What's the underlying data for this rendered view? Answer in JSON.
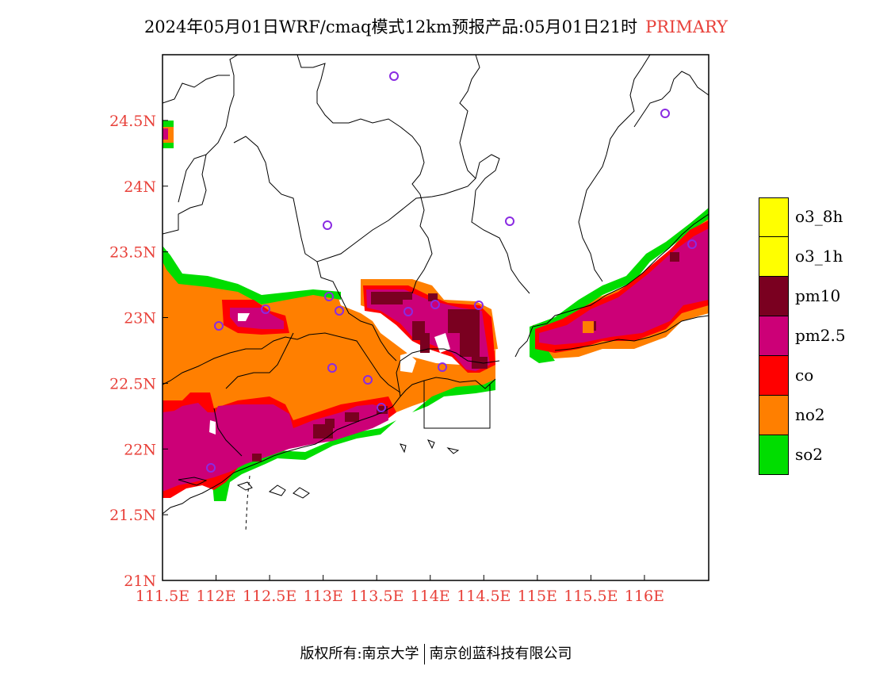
{
  "title": {
    "main": "2024年05月01日WRF/cmaq模式12km预报产品:05月01日21时",
    "tag": "PRIMARY"
  },
  "colors": {
    "axis_label": "#e8413a",
    "station_marker": "#8a2be2",
    "o3_8h": "#ffff00",
    "o3_1h": "#ffff00",
    "pm10": "#7a0020",
    "pm2.5": "#cc0077",
    "co": "#ff0000",
    "no2": "#ff7f00",
    "so2": "#00dd00"
  },
  "map": {
    "lon_range": [
      111.5,
      116.6
    ],
    "lat_range": [
      21.0,
      25.0
    ],
    "x_ticks": [
      "111.5E",
      "112E",
      "112.5E",
      "113E",
      "113.5E",
      "114E",
      "114.5E",
      "115E",
      "115.5E",
      "116E"
    ],
    "y_ticks": [
      "24.5N",
      "24N",
      "23.5N",
      "23N",
      "22.5N",
      "22N",
      "21.5N",
      "21N"
    ]
  },
  "legend": [
    {
      "label": "o3_8h",
      "color": "#ffff00"
    },
    {
      "label": "o3_1h",
      "color": "#ffff00"
    },
    {
      "label": "pm10",
      "color": "#7a0020"
    },
    {
      "label": "pm2.5",
      "color": "#cc0077"
    },
    {
      "label": "co",
      "color": "#ff0000"
    },
    {
      "label": "no2",
      "color": "#ff7f00"
    },
    {
      "label": "so2",
      "color": "#00dd00"
    }
  ],
  "footer": {
    "left": "版权所有:南京大学",
    "right": "南京创蓝科技有限公司"
  }
}
